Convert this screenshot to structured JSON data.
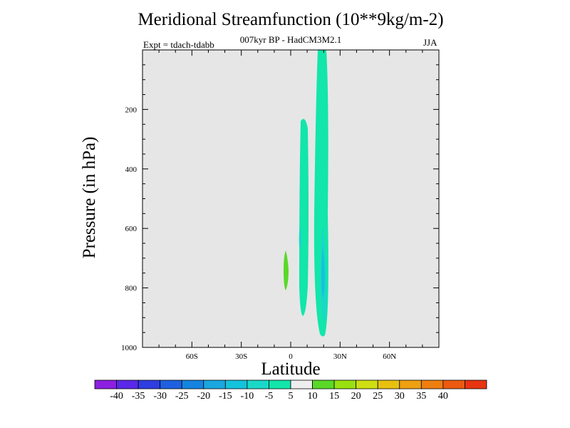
{
  "chart_data": {
    "type": "contour",
    "title": "Meridional Streamfunction (10**9kg/m-2)",
    "subtitle": "007kyr BP - HadCM3M2.1",
    "left_label": "Expt = tdach-tdabb",
    "right_label": "JJA",
    "xlabel": "Latitude",
    "ylabel": "Pressure (in hPa)",
    "xlim": [
      -90,
      90
    ],
    "ylim": [
      1000,
      0
    ],
    "x_ticks": [
      {
        "value": -60,
        "label": "60S"
      },
      {
        "value": -30,
        "label": "30S"
      },
      {
        "value": 0,
        "label": "0"
      },
      {
        "value": 30,
        "label": "30N"
      },
      {
        "value": 60,
        "label": "60N"
      }
    ],
    "y_ticks": [
      {
        "value": 200,
        "label": "200"
      },
      {
        "value": 400,
        "label": "400"
      },
      {
        "value": 600,
        "label": "600"
      },
      {
        "value": 800,
        "label": "800"
      },
      {
        "value": 1000,
        "label": "1000"
      }
    ],
    "background_color": "#e6e6e6",
    "colorbar": {
      "levels": [
        -40,
        -35,
        -30,
        -25,
        -20,
        -15,
        -10,
        -5,
        5,
        10,
        15,
        20,
        25,
        30,
        35,
        40
      ],
      "labels": [
        "-40",
        "-35",
        "-30",
        "-25",
        "-20",
        "-15",
        "-10",
        "-5",
        "5",
        "10",
        "15",
        "20",
        "25",
        "30",
        "35",
        "40"
      ],
      "colors": [
        "#8c1fe0",
        "#5a28e8",
        "#2e3ee0",
        "#1f60e0",
        "#1484e0",
        "#1aa6e0",
        "#14c2dc",
        "#1ad8c8",
        "#12e6aa",
        "#eeeeee",
        "#5ad828",
        "#9ae010",
        "#cede10",
        "#e8c010",
        "#eea010",
        "#ee7e10",
        "#ec5a10",
        "#e83410"
      ]
    },
    "features": [
      {
        "name": "nh-band-upper",
        "lat_range": [
          16,
          22
        ],
        "pressure_range": [
          0,
          960
        ],
        "level": "-10 to -5"
      },
      {
        "name": "nh-core",
        "lat_range": [
          17,
          21
        ],
        "pressure_range": [
          510,
          940
        ],
        "level": "-15 to -10"
      },
      {
        "name": "nh-inner-core",
        "lat_range": [
          18,
          20
        ],
        "pressure_range": [
          640,
          850
        ],
        "level": "-20 to -15"
      },
      {
        "name": "tropical-band",
        "lat_range": [
          6,
          11
        ],
        "pressure_range": [
          225,
          900
        ],
        "level": "-10 to -5"
      },
      {
        "name": "tropical-small",
        "lat_range": [
          5,
          7
        ],
        "pressure_range": [
          580,
          650
        ],
        "level": "-15 to -10"
      },
      {
        "name": "positive-patch",
        "lat_range": [
          -4,
          -1
        ],
        "pressure_range": [
          680,
          815
        ],
        "level": "5 to 10"
      }
    ]
  }
}
